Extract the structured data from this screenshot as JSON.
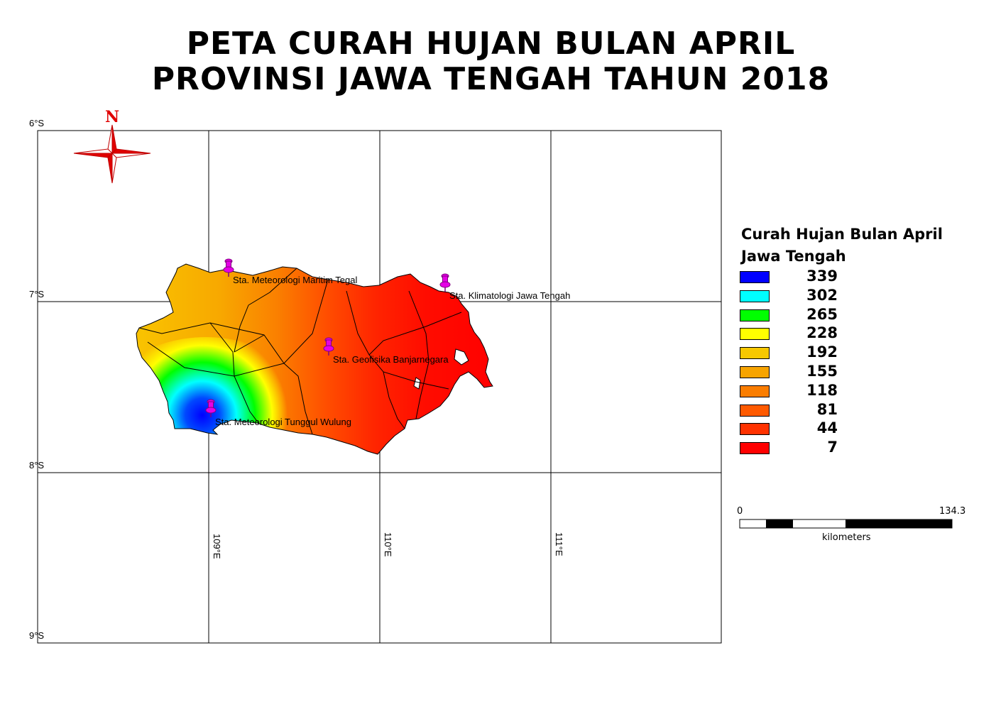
{
  "title": {
    "line1": "PETA CURAH HUJAN BULAN APRIL",
    "line2": "PROVINSI JAWA TENGAH TAHUN 2018"
  },
  "north_arrow": {
    "label": "N",
    "icon": "compass-rose-icon"
  },
  "graticule": {
    "latitude_labels": [
      "6°S",
      "7°S",
      "8°S",
      "9°S"
    ],
    "longitude_labels": [
      "109°E",
      "110°E",
      "111°E"
    ]
  },
  "stations": [
    {
      "name": "Sta. Meteorologi Maritim Tegal",
      "icon": "map-pin-icon"
    },
    {
      "name": "Sta. Klimatologi Jawa Tengah",
      "icon": "map-pin-icon"
    },
    {
      "name": "Sta. Geofisika Banjarnegara",
      "icon": "map-pin-icon"
    },
    {
      "name": "Sta. Meteorologi Tunggul Wulung",
      "icon": "map-pin-icon"
    }
  ],
  "legend": {
    "title_line1": "Curah Hujan Bulan April",
    "title_line2": "Jawa Tengah",
    "classes": [
      {
        "value": "339",
        "color": "#0000ff"
      },
      {
        "value": "302",
        "color": "#00ffff"
      },
      {
        "value": "265",
        "color": "#00ff00"
      },
      {
        "value": "228",
        "color": "#ffff00"
      },
      {
        "value": "192",
        "color": "#f7c800"
      },
      {
        "value": "155",
        "color": "#f7a400"
      },
      {
        "value": "118",
        "color": "#fa7d00"
      },
      {
        "value": "81",
        "color": "#ff5a00"
      },
      {
        "value": "44",
        "color": "#ff3200"
      },
      {
        "value": "7",
        "color": "#ff0000"
      }
    ]
  },
  "scale_bar": {
    "start": "0",
    "end": "134.3",
    "unit": "kilometers"
  },
  "colors": {
    "pin": "#e600e6",
    "frame": "#000000"
  }
}
